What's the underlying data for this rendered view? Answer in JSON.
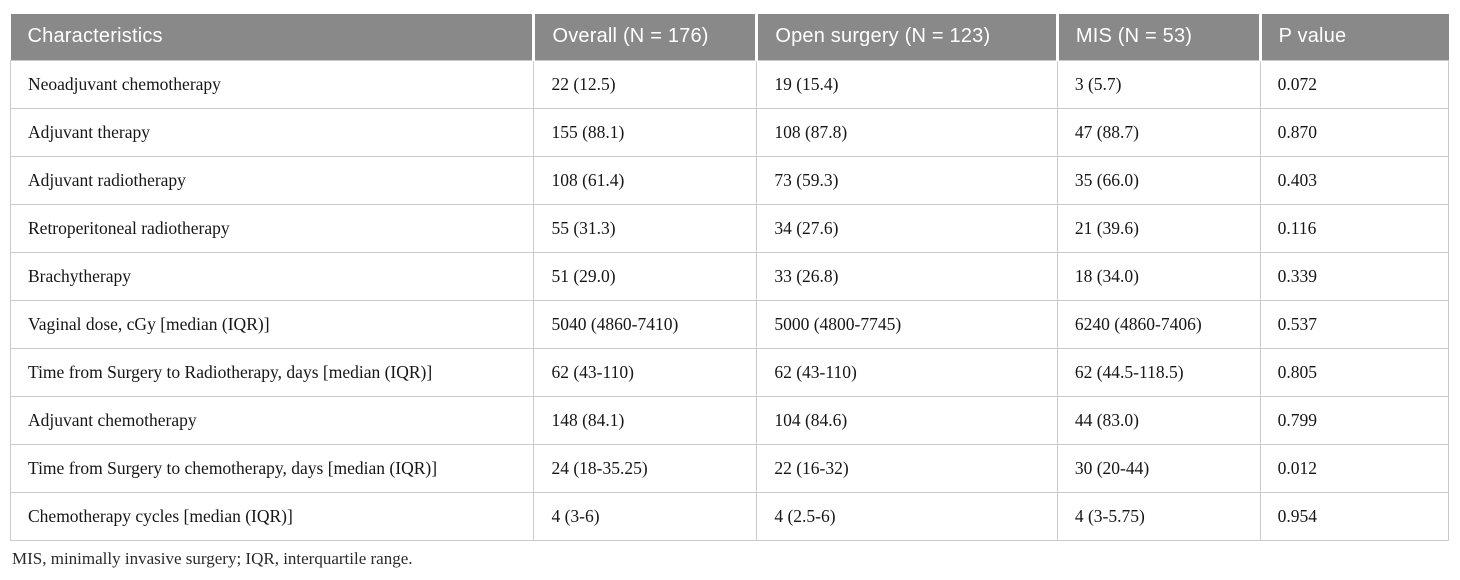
{
  "table": {
    "columns": [
      "Characteristics",
      "Overall (N = 176)",
      "Open surgery (N = 123)",
      "MIS (N = 53)",
      "P value"
    ],
    "rows": [
      [
        "Neoadjuvant chemotherapy",
        "22 (12.5)",
        "19 (15.4)",
        "3 (5.7)",
        "0.072"
      ],
      [
        "Adjuvant therapy",
        "155 (88.1)",
        "108 (87.8)",
        "47 (88.7)",
        "0.870"
      ],
      [
        "Adjuvant radiotherapy",
        "108 (61.4)",
        "73 (59.3)",
        "35 (66.0)",
        "0.403"
      ],
      [
        "Retroperitoneal radiotherapy",
        "55 (31.3)",
        "34 (27.6)",
        "21 (39.6)",
        "0.116"
      ],
      [
        "Brachytherapy",
        "51 (29.0)",
        "33 (26.8)",
        "18 (34.0)",
        "0.339"
      ],
      [
        "Vaginal dose, cGy [median (IQR)]",
        "5040 (4860-7410)",
        "5000 (4800-7745)",
        "6240 (4860-7406)",
        "0.537"
      ],
      [
        "Time from Surgery to Radiotherapy, days [median (IQR)]",
        "62 (43-110)",
        "62 (43-110)",
        "62 (44.5-118.5)",
        "0.805"
      ],
      [
        "Adjuvant chemotherapy",
        "148 (84.1)",
        "104 (84.6)",
        "44 (83.0)",
        "0.799"
      ],
      [
        "Time from Surgery to chemotherapy, days [median (IQR)]",
        "24 (18-35.25)",
        "22 (16-32)",
        "30 (20-44)",
        "0.012"
      ],
      [
        "Chemotherapy cycles [median (IQR)]",
        "4 (3-6)",
        "4 (2.5-6)",
        "4 (3-5.75)",
        "0.954"
      ]
    ],
    "footnote": "MIS, minimally invasive surgery; IQR, interquartile range.",
    "colors": {
      "header_bg": "#898989",
      "header_text": "#ffffff",
      "body_border": "#cbcbcb",
      "body_text": "#161616"
    }
  }
}
